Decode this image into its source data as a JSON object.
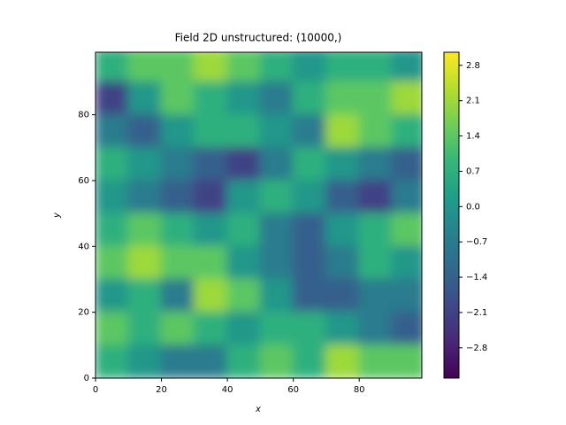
{
  "chart_data": {
    "type": "heatmap",
    "title": "Field 2D unstructured: (10000,)",
    "x_label": "x",
    "y_label": "y",
    "x": [
      5,
      15,
      25,
      35,
      45,
      55,
      65,
      75,
      85,
      95
    ],
    "y": [
      95,
      85,
      75,
      65,
      55,
      45,
      35,
      25,
      15,
      5
    ],
    "z": [
      [
        0.7,
        1.4,
        1.4,
        2.1,
        1.4,
        0.7,
        0,
        0.7,
        0.7,
        0
      ],
      [
        -2.1,
        0,
        1.4,
        0.7,
        0,
        -0.7,
        0.7,
        1.4,
        1.4,
        2.1
      ],
      [
        -0.7,
        -1.4,
        0,
        0.7,
        0.7,
        0,
        -0.7,
        2.1,
        1.4,
        0.7
      ],
      [
        0.7,
        0,
        -0.7,
        -1.4,
        -2.1,
        -0.7,
        0.7,
        0,
        -0.7,
        -1.4
      ],
      [
        0,
        -0.7,
        -1.4,
        -2.1,
        0,
        0.7,
        0,
        -1.4,
        -2.1,
        -0.7
      ],
      [
        0.7,
        1.4,
        0.7,
        0,
        0.7,
        -0.7,
        -1.4,
        0,
        0.7,
        1.4
      ],
      [
        1.4,
        2.1,
        1.4,
        1.4,
        0,
        -0.7,
        -1.4,
        -0.7,
        0.7,
        0
      ],
      [
        0,
        0.7,
        -0.7,
        2.1,
        1.4,
        0,
        -1.4,
        -1.4,
        -0.7,
        -0.7
      ],
      [
        1.4,
        0.7,
        1.4,
        0.7,
        0,
        0.7,
        0.7,
        0,
        -0.7,
        -1.4
      ],
      [
        0.7,
        0,
        -0.7,
        -0.7,
        0.7,
        1.4,
        0.7,
        2.1,
        1.4,
        1.4
      ]
    ],
    "colormap": "viridis",
    "xlim": [
      0,
      99
    ],
    "ylim": [
      0,
      99
    ],
    "xticks": [
      0,
      20,
      40,
      60,
      80
    ],
    "yticks": [
      0,
      20,
      40,
      60,
      80
    ],
    "clim": [
      -3.4,
      3.06
    ],
    "cticks": [
      {
        "value": -2.8,
        "label": "−2.8"
      },
      {
        "value": -2.1,
        "label": "−2.1"
      },
      {
        "value": -1.4,
        "label": "−1.4"
      },
      {
        "value": -0.7,
        "label": "−0.7"
      },
      {
        "value": 0.0,
        "label": "0.0"
      },
      {
        "value": 0.7,
        "label": "0.7"
      },
      {
        "value": 1.4,
        "label": "1.4"
      },
      {
        "value": 2.1,
        "label": "2.1"
      },
      {
        "value": 2.8,
        "label": "2.8"
      }
    ]
  }
}
